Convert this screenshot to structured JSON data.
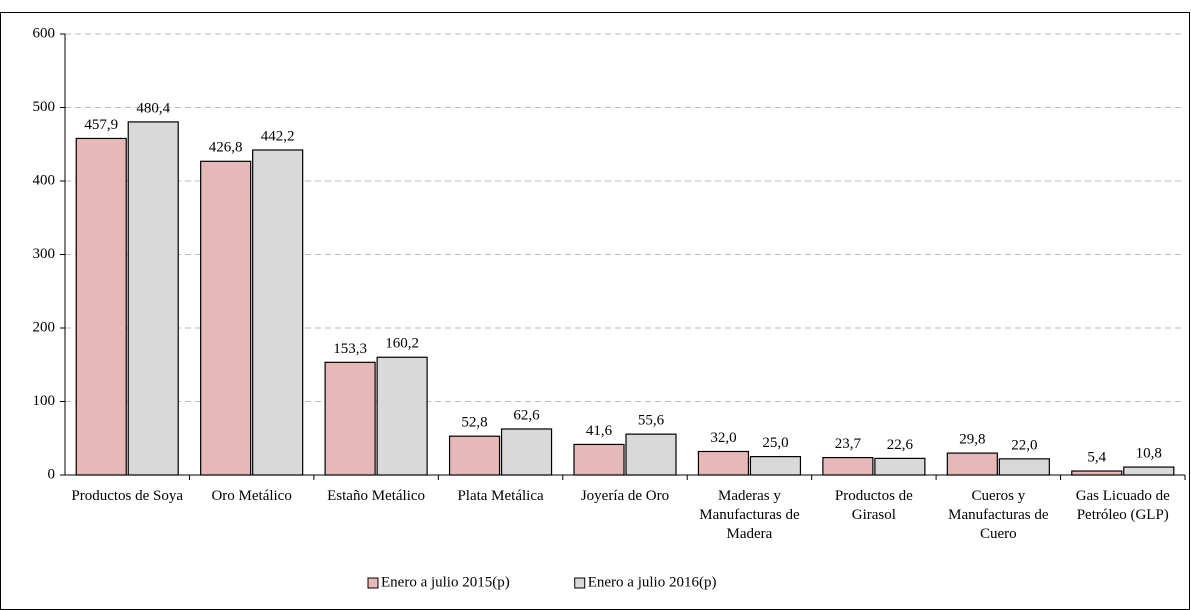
{
  "chart_data": {
    "type": "bar",
    "categories": [
      "Productos de Soya",
      "Oro Metálico",
      "Estaño Metálico",
      "Plata Metálica",
      "Joyería de Oro",
      "Maderas y Manufacturas de Madera",
      "Productos de Girasol",
      "Cueros y Manufacturas de Cuero",
      "Gas Licuado de Petróleo (GLP)"
    ],
    "series": [
      {
        "name": "Enero a julio 2015(p)",
        "color": "#e6b9b8",
        "values": [
          457.9,
          426.8,
          153.3,
          52.8,
          41.6,
          32.0,
          23.7,
          29.8,
          5.4
        ],
        "value_labels": [
          "457,9",
          "426,8",
          "153,3",
          "52,8",
          "41,6",
          "32,0",
          "23,7",
          "29,8",
          "5,4"
        ]
      },
      {
        "name": "Enero a julio 2016(p)",
        "color": "#d9d9d9",
        "values": [
          480.4,
          442.2,
          160.2,
          62.6,
          55.6,
          25.0,
          22.6,
          22.0,
          10.8
        ],
        "value_labels": [
          "480,4",
          "442,2",
          "160,2",
          "62,6",
          "55,6",
          "25,0",
          "22,6",
          "22,0",
          "10,8"
        ]
      }
    ],
    "ylim": [
      0,
      600
    ],
    "yticks": [
      0,
      100,
      200,
      300,
      400,
      500,
      600
    ],
    "grid": true,
    "legend": "bottom"
  }
}
